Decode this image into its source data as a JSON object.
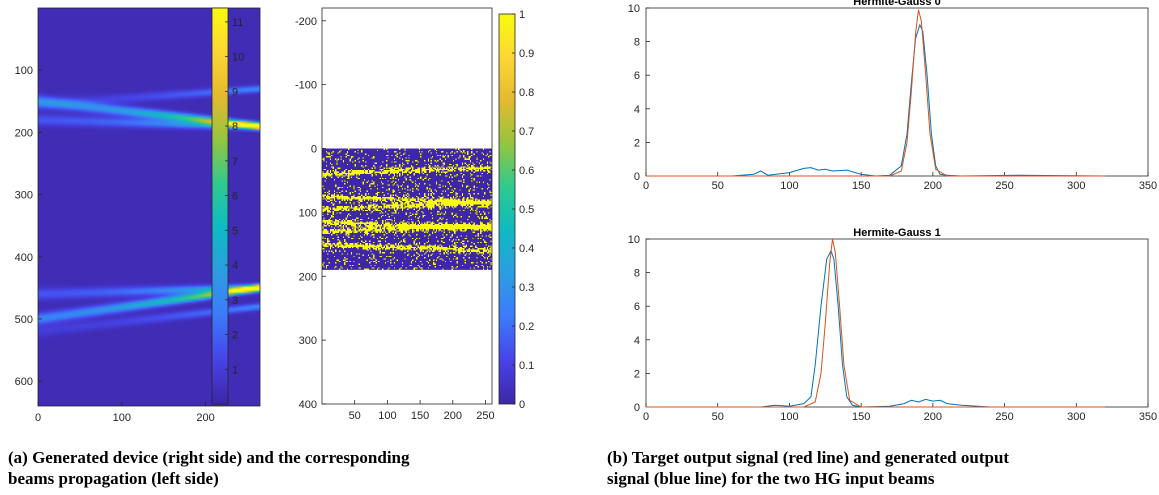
{
  "captions": {
    "a": [
      "(a) Generated device (right side) and the corresponding",
      "beams propagation (left side)"
    ],
    "b": [
      "(b) Target output signal (red line) and generated output",
      "signal (blue line) for the two HG input beams"
    ]
  },
  "colors": {
    "parula": [
      "#3e26a8",
      "#4743e8",
      "#3c7afc",
      "#2c9de2",
      "#0ebac2",
      "#2ec98f",
      "#93c540",
      "#e4b92f",
      "#fcd634",
      "#f9fb0e"
    ],
    "blue_line": "#0072bd",
    "red_line": "#d95319",
    "axis": "#262626"
  },
  "chart_data": [
    {
      "type": "heatmap",
      "panel": "beam-propagation",
      "x_ticks": [
        0,
        100,
        200
      ],
      "y_ticks": [
        100,
        200,
        300,
        400,
        500,
        600
      ],
      "xlim": [
        0,
        265
      ],
      "ylim": [
        640,
        0
      ],
      "colorbar_ticks": [
        1,
        2,
        3,
        4,
        5,
        6,
        7,
        8,
        9,
        10,
        11
      ],
      "clim": [
        0,
        11.4
      ],
      "beams": [
        {
          "from": [
            0,
            150
          ],
          "to": [
            265,
            190
          ],
          "peak": 11
        },
        {
          "from": [
            0,
            180
          ],
          "to": [
            265,
            190
          ],
          "peak": 6
        },
        {
          "from": [
            0,
            155
          ],
          "to": [
            265,
            130
          ],
          "peak": 3
        },
        {
          "from": [
            0,
            500
          ],
          "to": [
            265,
            450
          ],
          "peak": 11
        },
        {
          "from": [
            0,
            460
          ],
          "to": [
            265,
            450
          ],
          "peak": 6
        },
        {
          "from": [
            0,
            520
          ],
          "to": [
            265,
            480
          ],
          "peak": 3
        }
      ]
    },
    {
      "type": "heatmap",
      "panel": "generated-device",
      "x_ticks": [
        50,
        100,
        150,
        200,
        250
      ],
      "y_ticks": [
        -200,
        -100,
        0,
        100,
        200,
        300,
        400
      ],
      "xlim": [
        0,
        260
      ],
      "ylim": [
        -220,
        400
      ],
      "data_extent": {
        "x": [
          0,
          260
        ],
        "y": [
          0,
          190
        ]
      },
      "colorbar_ticks": [
        0,
        0.1,
        0.2,
        0.3,
        0.4,
        0.5,
        0.6,
        0.7,
        0.8,
        0.9,
        1
      ],
      "clim": [
        0,
        1
      ],
      "bands_y": [
        40,
        75,
        95,
        115,
        130,
        150
      ]
    },
    {
      "type": "line",
      "title": "Hermite-Gauss 0",
      "xlim": [
        0,
        350
      ],
      "ylim": [
        0,
        10
      ],
      "x_ticks": [
        0,
        50,
        100,
        150,
        200,
        250,
        300,
        350
      ],
      "y_ticks": [
        0,
        2,
        4,
        6,
        8,
        10
      ],
      "series": [
        {
          "color": "blue",
          "x": [
            0,
            60,
            75,
            80,
            85,
            100,
            110,
            115,
            120,
            125,
            130,
            140,
            150,
            160,
            170,
            178,
            182,
            185,
            188,
            191,
            193,
            196,
            199,
            202,
            205,
            210,
            220,
            260,
            320
          ],
          "y": [
            0,
            0,
            0.1,
            0.3,
            0.05,
            0.2,
            0.45,
            0.5,
            0.35,
            0.4,
            0.3,
            0.35,
            0.1,
            0,
            0.05,
            0.6,
            2.5,
            5.5,
            8.2,
            9.0,
            8.6,
            6.0,
            2.5,
            0.6,
            0.1,
            0.05,
            0,
            0.05,
            0
          ]
        },
        {
          "color": "red",
          "x": [
            0,
            170,
            178,
            182,
            185,
            188,
            190,
            192,
            195,
            198,
            202,
            210,
            320
          ],
          "y": [
            0,
            0,
            0.3,
            2.0,
            5.0,
            8.5,
            9.9,
            9.2,
            6.0,
            2.5,
            0.4,
            0,
            0
          ]
        }
      ]
    },
    {
      "type": "line",
      "title": "Hermite-Gauss 1",
      "xlim": [
        0,
        350
      ],
      "ylim": [
        0,
        10
      ],
      "x_ticks": [
        0,
        50,
        100,
        150,
        200,
        250,
        300,
        350
      ],
      "y_ticks": [
        0,
        2,
        4,
        6,
        8,
        10
      ],
      "series": [
        {
          "color": "blue",
          "x": [
            0,
            80,
            90,
            100,
            110,
            115,
            118,
            122,
            126,
            129,
            131,
            134,
            137,
            140,
            144,
            150,
            170,
            180,
            185,
            190,
            195,
            200,
            205,
            210,
            220,
            240,
            320
          ],
          "y": [
            0,
            0,
            0.1,
            0.05,
            0.2,
            0.6,
            2.5,
            6.0,
            8.8,
            9.3,
            8.8,
            6.0,
            2.5,
            0.6,
            0.1,
            0,
            0.05,
            0.2,
            0.4,
            0.3,
            0.45,
            0.35,
            0.4,
            0.2,
            0.1,
            0,
            0
          ]
        },
        {
          "color": "red",
          "x": [
            0,
            110,
            118,
            122,
            125,
            128,
            130,
            132,
            135,
            138,
            142,
            150,
            320
          ],
          "y": [
            0,
            0,
            0.3,
            2.0,
            5.0,
            8.5,
            10.0,
            9.2,
            6.0,
            2.5,
            0.4,
            0,
            0
          ]
        }
      ]
    }
  ]
}
